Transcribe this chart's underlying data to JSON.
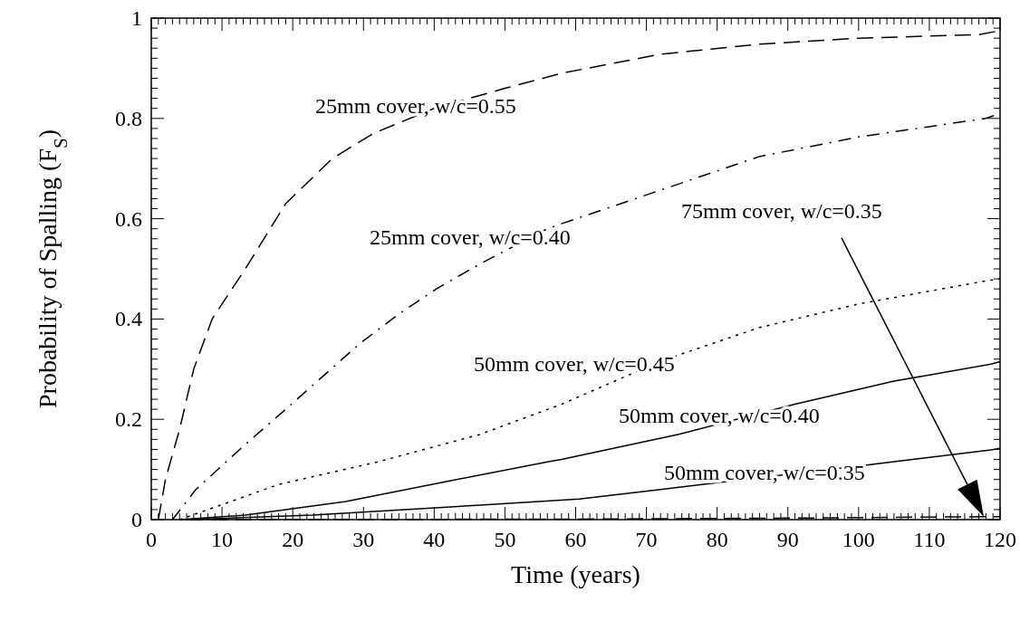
{
  "chart_data": {
    "type": "line",
    "xlabel": "Time (years)",
    "ylabel": "Probability of Spalling (F$_{S}$)",
    "xlim": [
      0,
      120
    ],
    "xticks": [
      0,
      10,
      20,
      30,
      40,
      50,
      60,
      70,
      80,
      90,
      100,
      110,
      120
    ],
    "ylim": [
      0,
      1
    ],
    "yticks": [
      0,
      0.2,
      0.4,
      0.6,
      0.8,
      1
    ],
    "grid": false,
    "marker": "none",
    "series": [
      {
        "name": "25mm cover, w/c=0.55",
        "color": "#000000",
        "line_style": "dashed",
        "x": [
          1,
          2,
          4,
          6,
          8.6,
          13.3,
          19,
          25.6,
          31.4,
          40,
          50,
          58,
          72,
          86,
          100,
          117,
          120
        ],
        "values": [
          0,
          0.08,
          0.18,
          0.3,
          0.4,
          0.5,
          0.63,
          0.72,
          0.77,
          0.82,
          0.86,
          0.89,
          0.928,
          0.948,
          0.96,
          0.967,
          0.975
        ]
      },
      {
        "name": "25mm cover, w/c=0.40",
        "color": "#000000",
        "line_style": "dashdot",
        "x": [
          3,
          6.3,
          13.3,
          19,
          23.8,
          29.4,
          35,
          40.3,
          46.5,
          56,
          58,
          72,
          86,
          100,
          118,
          120
        ],
        "values": [
          0,
          0.06,
          0.15,
          0.22,
          0.28,
          0.35,
          0.41,
          0.46,
          0.51,
          0.58,
          0.59,
          0.657,
          0.724,
          0.763,
          0.8,
          0.81
        ]
      },
      {
        "name": "50mm cover, w/c=0.45",
        "color": "#000000",
        "line_style": "dotted",
        "x": [
          4,
          18,
          32,
          46.5,
          58,
          72,
          86,
          100,
          118,
          120
        ],
        "values": [
          0,
          0.07,
          0.115,
          0.17,
          0.23,
          0.316,
          0.383,
          0.43,
          0.476,
          0.48
        ]
      },
      {
        "name": "50mm cover, w/c=0.40",
        "color": "#000000",
        "line_style": "solid",
        "x": [
          4,
          13.3,
          27.5,
          41.7,
          56,
          58,
          74.6,
          91,
          105,
          118.7,
          120
        ],
        "values": [
          0,
          0.009,
          0.036,
          0.076,
          0.115,
          0.12,
          0.17,
          0.23,
          0.276,
          0.31,
          0.315
        ]
      },
      {
        "name": "50mm cover, w/c=0.35",
        "color": "#000000",
        "line_style": "solid",
        "x": [
          5,
          22.8,
          46.5,
          60.5,
          72,
          100.6,
          118.7,
          120
        ],
        "values": [
          0,
          0.009,
          0.029,
          0.041,
          0.06,
          0.108,
          0.139,
          0.142
        ]
      },
      {
        "color": "#000000",
        "line_style": "dashed",
        "x": [
          5,
          60,
          90,
          120
        ],
        "values": [
          0,
          0.001,
          0.003,
          0.006
        ]
      }
    ],
    "annotations": [
      "75mm cover, w/c=0.35"
    ]
  }
}
